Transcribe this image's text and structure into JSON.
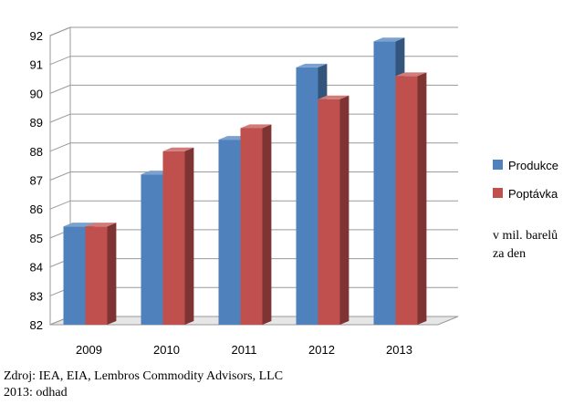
{
  "chart_data": {
    "type": "bar",
    "style": "3d-clustered-column",
    "categories": [
      "2009",
      "2010",
      "2011",
      "2012",
      "2013"
    ],
    "series": [
      {
        "name": "Produkce",
        "color": "#4f81bd",
        "values": [
          85.4,
          87.2,
          88.4,
          90.9,
          91.8
        ]
      },
      {
        "name": "Poptávka",
        "color": "#c0504d",
        "values": [
          85.4,
          88.0,
          88.8,
          89.8,
          90.6
        ]
      }
    ],
    "yticks": [
      "82",
      "83",
      "84",
      "85",
      "86",
      "87",
      "88",
      "89",
      "90",
      "91",
      "92"
    ],
    "ylim": [
      82,
      92
    ],
    "grid": true,
    "legend_position": "right"
  },
  "unit_note": [
    "v mil. barelů",
    "za den"
  ],
  "source_lines": [
    "Zdroj: IEA, EIA, Lembros Commodity Advisors, LLC",
    "2013: odhad"
  ]
}
